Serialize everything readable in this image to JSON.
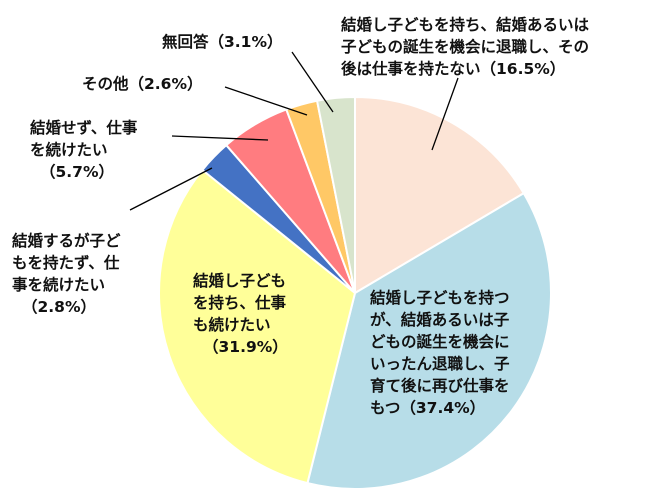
{
  "chart_data": {
    "type": "pie",
    "start_angle_deg": 0,
    "direction": "clockwise",
    "slices": [
      {
        "label_lines": [
          "結婚し子どもを持ち、結婚あるいは",
          "子どもの誕生を機会に退職し、その",
          "後は仕事を持たない（16.5%）"
        ],
        "value": 16.5,
        "color": "#fce4d6"
      },
      {
        "label_lines": [
          "結婚し子どもを持つ",
          "が、結婚あるいは子",
          "どもの誕生を機会に",
          "いったん退職し、子",
          "育て後に再び仕事を",
          "もつ（37.4%）"
        ],
        "value": 37.4,
        "color": "#b7dde8"
      },
      {
        "label_lines": [
          "結婚し子ども",
          "を持ち、仕事",
          "も続けたい",
          "（31.9%）"
        ],
        "value": 31.9,
        "color": "#ffff99"
      },
      {
        "label_lines": [
          "結婚するが子ど",
          "もを持たず、仕",
          "事を続けたい",
          "（2.8%）"
        ],
        "value": 2.8,
        "color": "#4472c4"
      },
      {
        "label_lines": [
          "結婚せず、仕事",
          "を続けたい",
          "（5.7%）"
        ],
        "value": 5.7,
        "color": "#ff7c80"
      },
      {
        "label_lines": [
          "その他（2.6%）"
        ],
        "value": 2.6,
        "color": "#ffc866"
      },
      {
        "label_lines": [
          "無回答（3.1%）"
        ],
        "value": 3.1,
        "color": "#d8e4cc"
      }
    ]
  }
}
